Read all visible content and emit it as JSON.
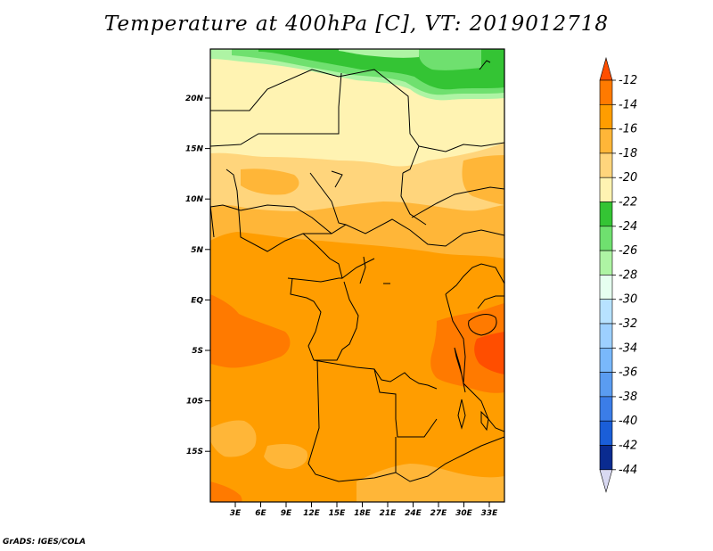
{
  "title": "Temperature at 400hPa [C], VT: 2019012718",
  "credit": "GrADS: IGES/COLA",
  "map": {
    "lat_labels": [
      "20N",
      "15N",
      "10N",
      "5N",
      "EQ",
      "5S",
      "10S",
      "15S"
    ],
    "lon_labels": [
      "3E",
      "6E",
      "9E",
      "12E",
      "15E",
      "18E",
      "21E",
      "24E",
      "27E",
      "30E",
      "33E"
    ]
  },
  "colorbar": {
    "labels": [
      "-12",
      "-14",
      "-16",
      "-18",
      "-20",
      "-22",
      "-24",
      "-26",
      "-28",
      "-30",
      "-32",
      "-34",
      "-36",
      "-38",
      "-40",
      "-42",
      "-44"
    ],
    "colors": [
      "#ff4e00",
      "#ff7a00",
      "#ff9d00",
      "#ffb638",
      "#ffd57c",
      "#fff3b2",
      "#34c434",
      "#6fe06f",
      "#aef4a4",
      "#e6fff0",
      "#b7e2ff",
      "#9dd0ff",
      "#79b8fb",
      "#5a9cf1",
      "#3b7de8",
      "#1a5ed8",
      "#0a2b90",
      "#d9d9f2"
    ]
  }
}
